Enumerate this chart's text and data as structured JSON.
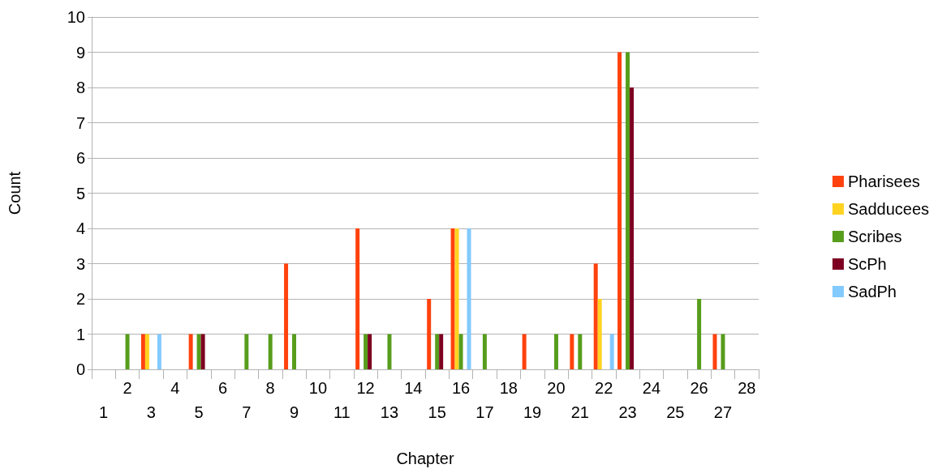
{
  "chart_data": {
    "type": "bar",
    "xlabel": "Chapter",
    "ylabel": "Count",
    "categories": [
      "1",
      "2",
      "3",
      "4",
      "5",
      "6",
      "7",
      "8",
      "9",
      "10",
      "11",
      "12",
      "13",
      "14",
      "15",
      "16",
      "17",
      "18",
      "19",
      "20",
      "21",
      "22",
      "23",
      "24",
      "25",
      "26",
      "27",
      "28"
    ],
    "series": [
      {
        "name": "Pharisees",
        "color": "#ff420e",
        "values": [
          null,
          null,
          1,
          null,
          1,
          null,
          null,
          null,
          3,
          null,
          null,
          4,
          null,
          null,
          2,
          4,
          null,
          null,
          1,
          null,
          1,
          3,
          9,
          null,
          null,
          null,
          1,
          null
        ]
      },
      {
        "name": "Sadducees",
        "color": "#ffd320",
        "values": [
          null,
          null,
          1,
          null,
          null,
          null,
          null,
          null,
          null,
          null,
          null,
          null,
          null,
          null,
          null,
          4,
          null,
          null,
          null,
          null,
          null,
          2,
          null,
          null,
          null,
          null,
          null,
          null
        ]
      },
      {
        "name": "Scribes",
        "color": "#579d1c",
        "values": [
          null,
          1,
          null,
          null,
          1,
          null,
          1,
          1,
          1,
          null,
          null,
          1,
          1,
          null,
          1,
          1,
          1,
          null,
          null,
          1,
          1,
          null,
          9,
          null,
          null,
          2,
          1,
          null
        ]
      },
      {
        "name": "ScPh",
        "color": "#7e0021",
        "values": [
          null,
          null,
          null,
          null,
          1,
          null,
          null,
          null,
          null,
          null,
          null,
          1,
          null,
          null,
          1,
          null,
          null,
          null,
          null,
          null,
          null,
          null,
          8,
          null,
          null,
          null,
          null,
          null
        ]
      },
      {
        "name": "SadPh",
        "color": "#83caff",
        "values": [
          null,
          null,
          1,
          null,
          null,
          null,
          null,
          null,
          null,
          null,
          null,
          null,
          null,
          null,
          null,
          4,
          null,
          null,
          null,
          null,
          null,
          1,
          null,
          null,
          null,
          null,
          null,
          null
        ]
      }
    ],
    "ylim": [
      0,
      10
    ],
    "yticks": [
      0,
      1,
      2,
      3,
      4,
      5,
      6,
      7,
      8,
      9,
      10
    ],
    "grid": "y",
    "legend": "right"
  }
}
